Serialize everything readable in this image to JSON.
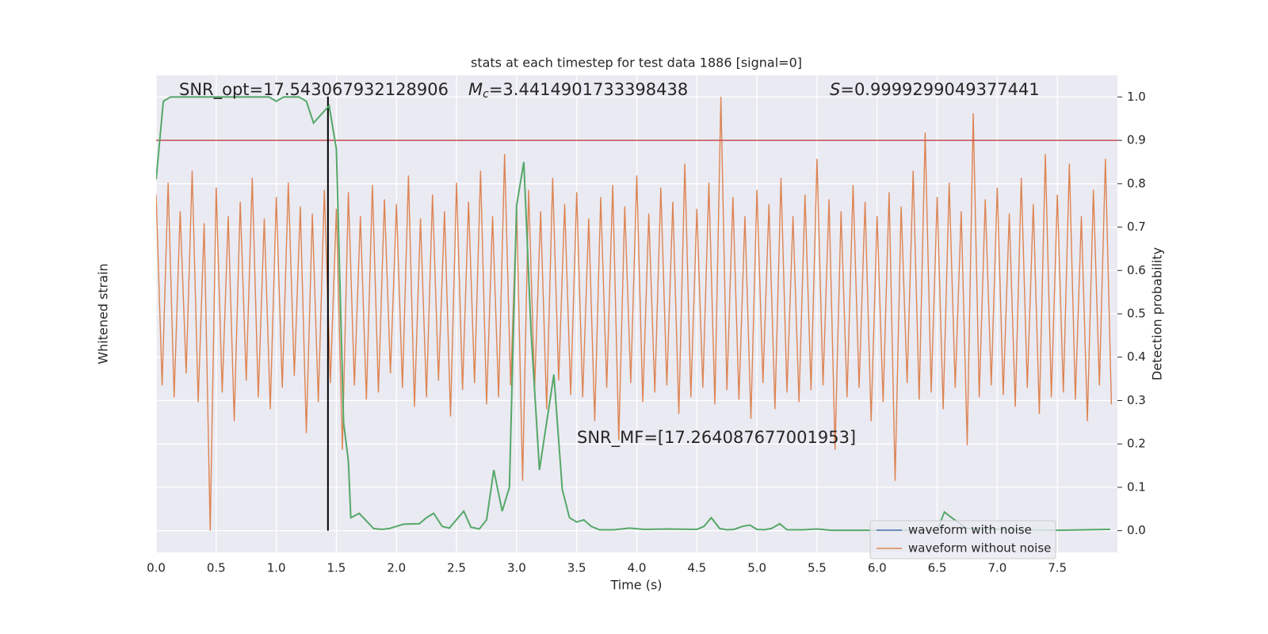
{
  "chart_data": {
    "type": "line",
    "title": "stats at each timestep for test data 1886 [signal=0]",
    "xlabel": "Time (s)",
    "ylabel": "Whitened strain",
    "y2label": "Detection probability",
    "xlim": [
      0,
      8
    ],
    "ylim": [
      -1.05,
      0.95
    ],
    "y2lim": [
      -0.05,
      1.05
    ],
    "xticks": [
      {
        "value": 0,
        "label": "0.0"
      },
      {
        "value": 0.5,
        "label": "0.5"
      },
      {
        "value": 1,
        "label": "1.0"
      },
      {
        "value": 1.5,
        "label": "1.5"
      },
      {
        "value": 2,
        "label": "2.0"
      },
      {
        "value": 2.5,
        "label": "2.5"
      },
      {
        "value": 3,
        "label": "3.0"
      },
      {
        "value": 3.5,
        "label": "3.5"
      },
      {
        "value": 4,
        "label": "4.0"
      },
      {
        "value": 4.5,
        "label": "4.5"
      },
      {
        "value": 5,
        "label": "5.0"
      },
      {
        "value": 5.5,
        "label": "5.5"
      },
      {
        "value": 6,
        "label": "6.0"
      },
      {
        "value": 6.5,
        "label": "6.5"
      },
      {
        "value": 7,
        "label": "7.0"
      },
      {
        "value": 7.5,
        "label": "7.5"
      }
    ],
    "y2ticks": [
      {
        "value": 0,
        "label": "0.0"
      },
      0.1,
      0.2,
      0.3,
      0.4,
      0.5,
      0.6,
      0.7,
      0.8,
      0.9,
      {
        "value": 1,
        "label": "1.0"
      }
    ],
    "grid": true,
    "legend": "lower right",
    "series": [
      {
        "name": "waveform with noise",
        "color": "#4c72b0"
      },
      {
        "name": "waveform without noise",
        "color": "#dd8452",
        "x": [
          0,
          0.05,
          0.1,
          0.15,
          0.2,
          0.25,
          0.3,
          0.35,
          0.4,
          0.45,
          0.5,
          0.55,
          0.6,
          0.65,
          0.7,
          0.75,
          0.8,
          0.85,
          0.9,
          0.95,
          1,
          1.05,
          1.1,
          1.15,
          1.2,
          1.25,
          1.3,
          1.35,
          1.4,
          1.45,
          1.5,
          1.55,
          1.6,
          1.65,
          1.7,
          1.75,
          1.8,
          1.85,
          1.9,
          1.95,
          2,
          2.05,
          2.1,
          2.15,
          2.2,
          2.25,
          2.3,
          2.35,
          2.4,
          2.45,
          2.5,
          2.55,
          2.6,
          2.65,
          2.7,
          2.75,
          2.8,
          2.85,
          2.9,
          2.95,
          3,
          3.05,
          3.1,
          3.15,
          3.2,
          3.25,
          3.3,
          3.35,
          3.4,
          3.45,
          3.5,
          3.55,
          3.6,
          3.65,
          3.7,
          3.75,
          3.8,
          3.85,
          3.9,
          3.95,
          4,
          4.05,
          4.1,
          4.15,
          4.2,
          4.25,
          4.3,
          4.35,
          4.4,
          4.45,
          4.5,
          4.55,
          4.6,
          4.65,
          4.7,
          4.75,
          4.8,
          4.85,
          4.9,
          4.95,
          5,
          5.05,
          5.1,
          5.15,
          5.2,
          5.25,
          5.3,
          5.35,
          5.4,
          5.45,
          5.5,
          5.55,
          5.6,
          5.65,
          5.7,
          5.75,
          5.8,
          5.85,
          5.9,
          5.95,
          6,
          6.05,
          6.1,
          6.15,
          6.2,
          6.25,
          6.3,
          6.35,
          6.4,
          6.45,
          6.5,
          6.55,
          6.6,
          6.65,
          6.7,
          6.75,
          6.8,
          6.85,
          6.9,
          6.95,
          7,
          7.05,
          7.1,
          7.15,
          7.2,
          7.25,
          7.3,
          7.35,
          7.4,
          7.45,
          7.5,
          7.55,
          7.6,
          7.65,
          7.7,
          7.75,
          7.8,
          7.85,
          7.9,
          7.95
        ],
        "values": [
          0.45,
          -0.35,
          0.5,
          -0.4,
          0.38,
          -0.3,
          0.55,
          -0.42,
          0.33,
          -0.96,
          0.48,
          -0.38,
          0.36,
          -0.5,
          0.42,
          -0.33,
          0.52,
          -0.4,
          0.35,
          -0.45,
          0.44,
          -0.36,
          0.5,
          -0.31,
          0.4,
          -0.55,
          0.37,
          -0.42,
          0.47,
          -0.34,
          0.39,
          -0.62,
          0.46,
          -0.35,
          0.36,
          -0.41,
          0.49,
          -0.38,
          0.43,
          -0.3,
          0.41,
          -0.36,
          0.53,
          -0.44,
          0.35,
          -0.4,
          0.45,
          -0.33,
          0.38,
          -0.48,
          0.5,
          -0.37,
          0.42,
          -0.34,
          0.55,
          -0.43,
          0.36,
          -0.4,
          0.62,
          -0.35,
          0.4,
          -0.75,
          0.47,
          -0.36,
          0.38,
          -0.45,
          0.52,
          -0.33,
          0.41,
          -0.39,
          0.46,
          -0.4,
          0.35,
          -0.5,
          0.44,
          -0.36,
          0.49,
          -0.58,
          0.4,
          -0.34,
          0.53,
          -0.42,
          0.37,
          -0.38,
          0.48,
          -0.35,
          0.42,
          -0.47,
          0.58,
          -0.4,
          0.39,
          -0.36,
          0.5,
          -0.43,
          0.86,
          -0.37,
          0.44,
          -0.41,
          0.36,
          -0.49,
          0.47,
          -0.34,
          0.41,
          -0.45,
          0.52,
          -0.38,
          0.36,
          -0.42,
          0.45,
          -0.37,
          0.6,
          -0.35,
          0.43,
          -0.62,
          0.38,
          -0.4,
          0.49,
          -0.36,
          0.42,
          -0.5,
          0.36,
          -0.42,
          0.46,
          -0.75,
          0.4,
          -0.34,
          0.55,
          -0.41,
          0.71,
          -0.38,
          0.44,
          -0.45,
          0.5,
          -0.36,
          0.38,
          -0.6,
          0.79,
          -0.4,
          0.43,
          -0.35,
          0.48,
          -0.39,
          0.37,
          -0.44,
          0.52,
          -0.36,
          0.41,
          -0.47,
          0.62,
          -0.4,
          0.45,
          -0.38,
          0.58,
          -0.41,
          0.36,
          -0.5,
          0.47,
          -0.35,
          0.6,
          -0.43
        ]
      }
    ],
    "probability": {
      "color": "#55a868",
      "axis": "y2",
      "x": [
        0,
        0.06,
        0.12,
        0.5,
        0.75,
        0.94,
        1.0,
        1.06,
        1.19,
        1.25,
        1.31,
        1.44,
        1.5,
        1.56,
        1.6,
        1.62,
        1.69,
        1.81,
        1.88,
        1.94,
        2.06,
        2.19,
        2.25,
        2.31,
        2.38,
        2.44,
        2.56,
        2.62,
        2.69,
        2.75,
        2.81,
        2.88,
        2.94,
        3.0,
        3.06,
        3.12,
        3.19,
        3.25,
        3.31,
        3.38,
        3.44,
        3.5,
        3.56,
        3.62,
        3.69,
        3.81,
        3.94,
        4.06,
        4.25,
        4.5,
        4.56,
        4.62,
        4.69,
        4.75,
        4.81,
        4.88,
        4.94,
        5.0,
        5.06,
        5.12,
        5.19,
        5.25,
        5.38,
        5.5,
        5.62,
        6.5,
        6.56,
        6.62,
        6.75,
        7.0,
        7.5,
        7.94
      ],
      "values": [
        0.81,
        0.99,
        1.0,
        1.0,
        1.0,
        1.0,
        0.99,
        1.0,
        1.0,
        0.99,
        0.94,
        0.98,
        0.88,
        0.25,
        0.16,
        0.03,
        0.04,
        0.005,
        0.003,
        0.005,
        0.015,
        0.016,
        0.03,
        0.04,
        0.01,
        0.006,
        0.045,
        0.008,
        0.004,
        0.025,
        0.14,
        0.045,
        0.1,
        0.75,
        0.85,
        0.46,
        0.14,
        0.25,
        0.36,
        0.095,
        0.03,
        0.02,
        0.025,
        0.01,
        0.002,
        0.002,
        0.006,
        0.003,
        0.004,
        0.003,
        0.01,
        0.03,
        0.005,
        0.002,
        0.003,
        0.01,
        0.013,
        0.003,
        0.002,
        0.005,
        0.016,
        0.002,
        0.002,
        0.004,
        0.001,
        0.001,
        0.043,
        0.03,
        0.005,
        0.003,
        0.001,
        0.003
      ]
    },
    "threshold": {
      "value": 0.9,
      "color": "#c44e52"
    },
    "marker": {
      "x": 1.43,
      "color": "#000000"
    },
    "annotations": [
      {
        "text": "SNR_opt=17.543067932128906"
      },
      {
        "symbol": "M",
        "subscript": "c",
        "text": "=3.4414901733398438"
      },
      {
        "symbol": "S",
        "text": "=0.9999299049377441"
      },
      {
        "text": "SNR_MF=[17.264087677001953]"
      }
    ]
  }
}
